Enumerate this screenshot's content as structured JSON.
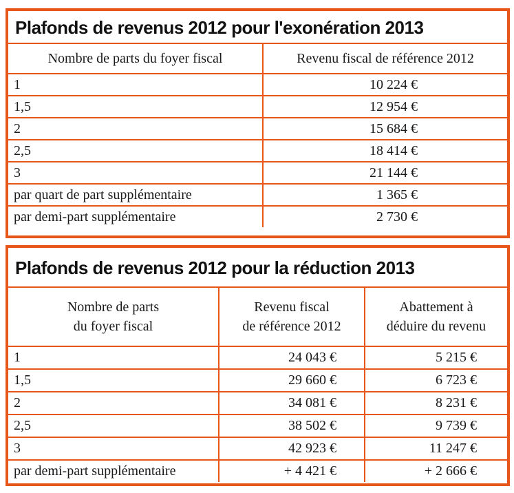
{
  "table1": {
    "title": "Plafonds de revenus 2012 pour l'exonération 2013",
    "headers": [
      "Nombre de parts du foyer fiscal",
      "Revenu fiscal de référence 2012"
    ],
    "rows": [
      [
        "1",
        "10 224 €"
      ],
      [
        "1,5",
        "12 954 €"
      ],
      [
        "2",
        "15 684 €"
      ],
      [
        "2,5",
        "18 414 €"
      ],
      [
        "3",
        "21 144 €"
      ],
      [
        "par quart de part supplémentaire",
        "1 365 €"
      ],
      [
        "par demi-part supplémentaire",
        "2 730 €"
      ]
    ]
  },
  "table2": {
    "title": "Plafonds de revenus 2012 pour la réduction 2013",
    "headers": [
      [
        "Nombre de parts",
        "du foyer fiscal"
      ],
      [
        "Revenu fiscal",
        "de référence 2012"
      ],
      [
        "Abattement à",
        "déduire du revenu"
      ]
    ],
    "rows": [
      [
        "1",
        "24 043 €",
        "5 215 €"
      ],
      [
        "1,5",
        "29 660 €",
        "6 723 €"
      ],
      [
        "2",
        "34 081 €",
        "8 231 €"
      ],
      [
        "2,5",
        "38 502 €",
        "9 739 €"
      ],
      [
        "3",
        "42 923 €",
        "11 247 €"
      ],
      [
        "par demi-part supplémentaire",
        "+ 4 421 €",
        "+ 2 666 €"
      ]
    ]
  }
}
